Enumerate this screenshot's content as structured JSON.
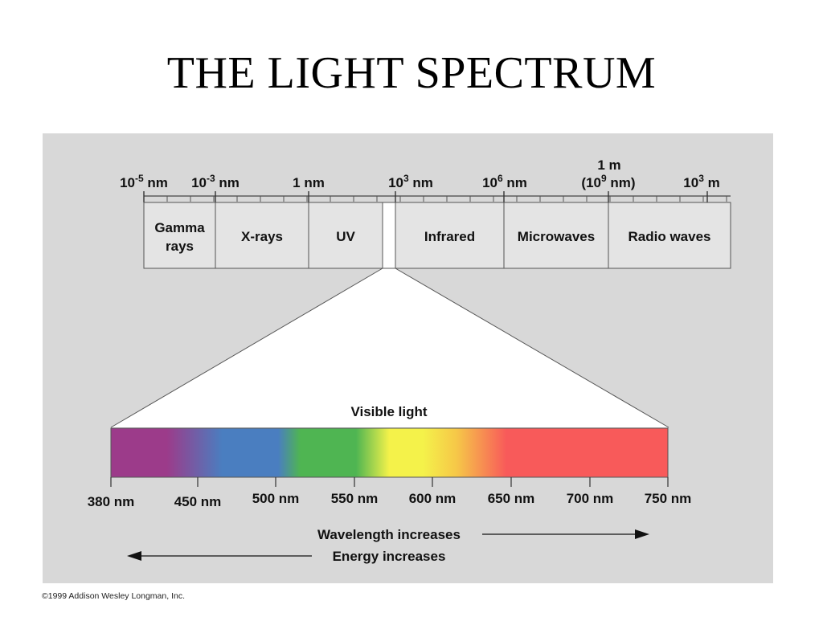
{
  "title": "THE LIGHT SPECTRUM",
  "top_scale": {
    "labels": [
      {
        "base": "10",
        "exp": "-5",
        "unit": " nm"
      },
      {
        "base": "10",
        "exp": "-3",
        "unit": " nm"
      },
      {
        "base": "",
        "exp": "",
        "unit": "1 nm"
      },
      {
        "base": "10",
        "exp": "3",
        "unit": " nm"
      },
      {
        "base": "10",
        "exp": "6",
        "unit": " nm"
      },
      {
        "base": "(10",
        "exp": "9",
        "unit": " nm)"
      },
      {
        "base": "10",
        "exp": "3",
        "unit": " m"
      }
    ],
    "one_m_label": "1 m"
  },
  "bands": [
    {
      "line1": "Gamma",
      "line2": "rays"
    },
    {
      "line1": "X-rays",
      "line2": ""
    },
    {
      "line1": "UV",
      "line2": ""
    },
    {
      "line1": "",
      "line2": ""
    },
    {
      "line1": "Infrared",
      "line2": ""
    },
    {
      "line1": "Microwaves",
      "line2": ""
    },
    {
      "line1": "Radio waves",
      "line2": ""
    }
  ],
  "visible": {
    "label": "Visible light",
    "ticks": [
      "380 nm",
      "450 nm",
      "500 nm",
      "550 nm",
      "600 nm",
      "650 nm",
      "700 nm",
      "750 nm"
    ],
    "colors": [
      "#9c3b8a",
      "#9c3b8a",
      "#4a7ec0",
      "#4a7ec0",
      "#4fb552",
      "#4fb552",
      "#f4f24a",
      "#f4f24a",
      "#f6c848",
      "#f85a5a",
      "#f85a5a"
    ]
  },
  "arrows": {
    "wavelength": "Wavelength increases",
    "energy": "Energy increases"
  },
  "copyright": "©1999 Addison Wesley Longman, Inc."
}
